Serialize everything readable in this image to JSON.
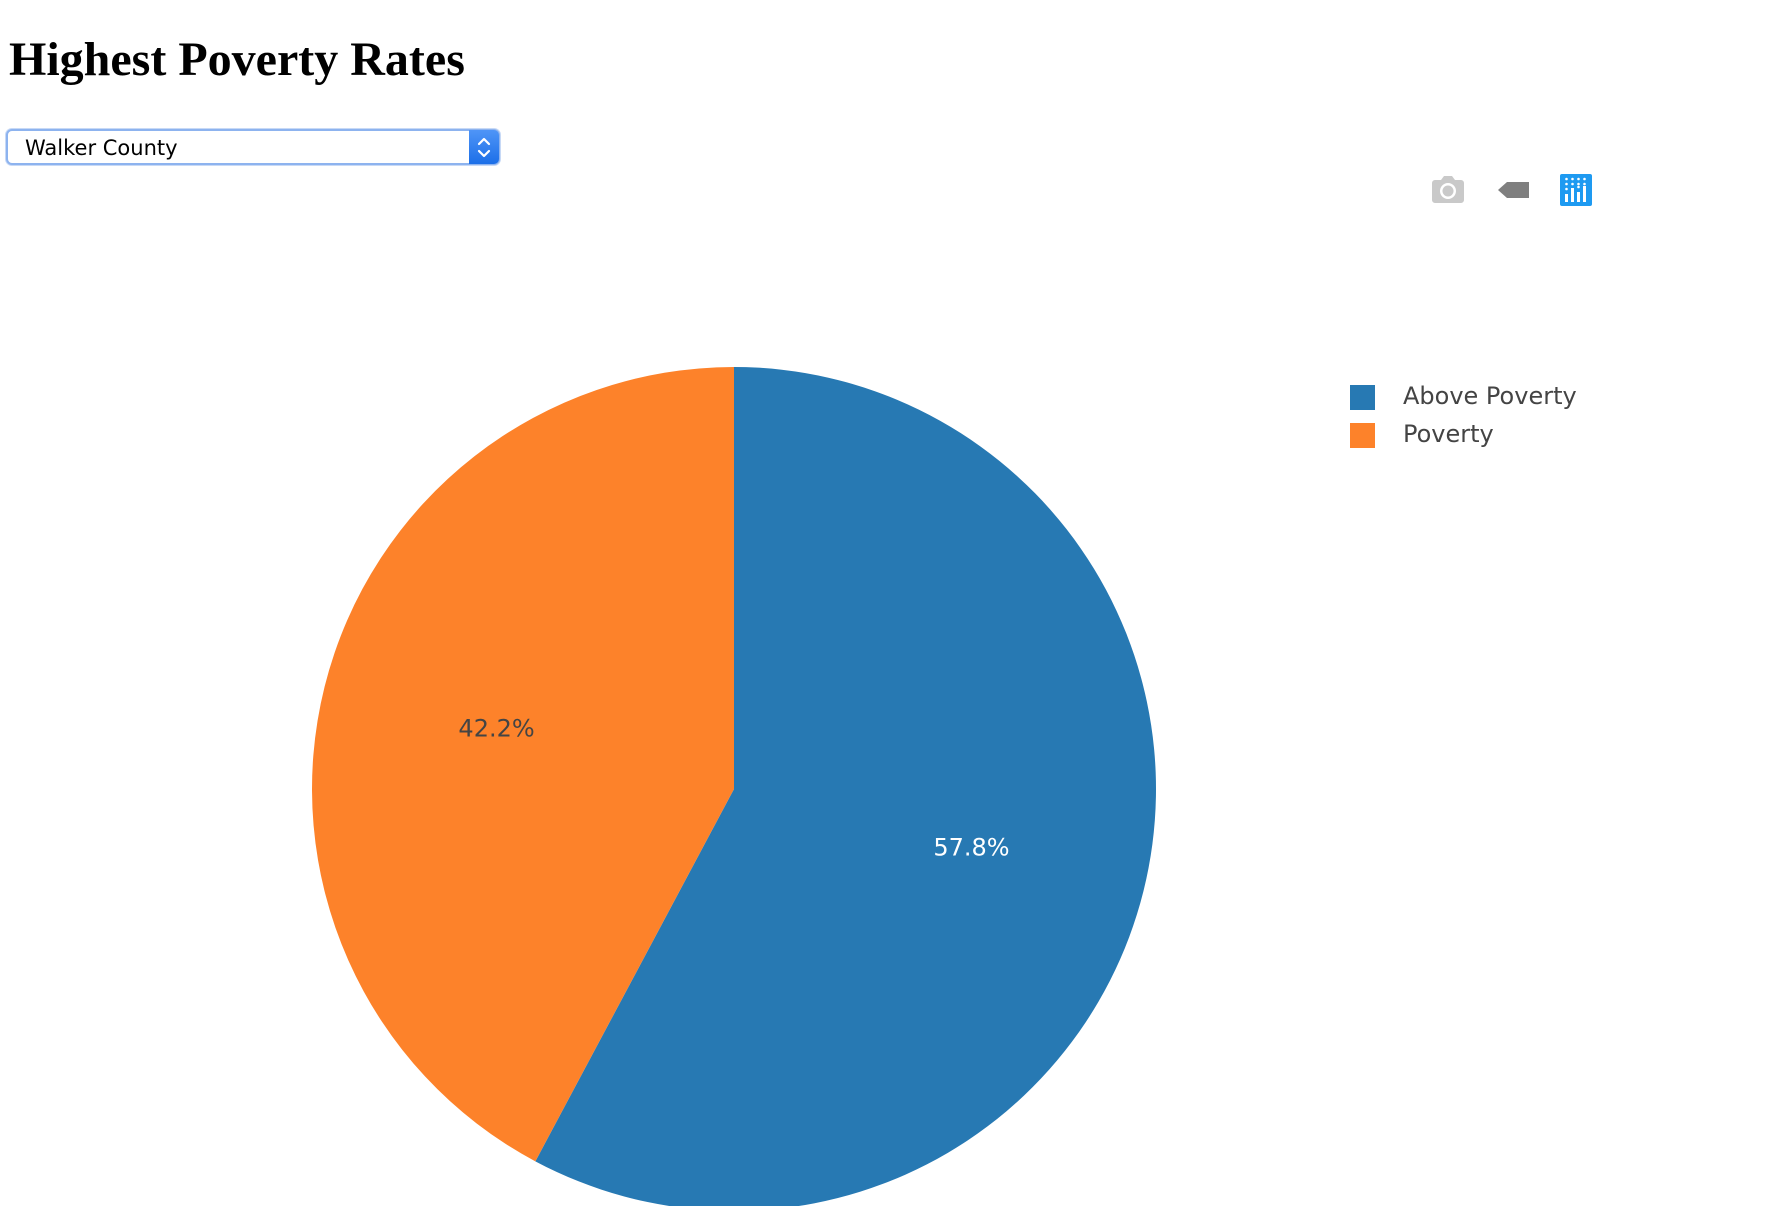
{
  "page": {
    "title": "Highest Poverty Rates"
  },
  "county_select": {
    "selected": "Walker County"
  },
  "modebar": {
    "buttons": [
      {
        "name": "camera-icon",
        "color": "#c9c9c9"
      },
      {
        "name": "tag-icon",
        "color": "#7f7f7f"
      },
      {
        "name": "plotly-logo-icon",
        "color": "#1e9af1"
      }
    ]
  },
  "chart_data": {
    "type": "pie",
    "title": "",
    "labels": [
      "Above Poverty",
      "Poverty"
    ],
    "values": [
      57.8,
      42.2
    ],
    "value_labels": [
      "57.8%",
      "42.2%"
    ],
    "colors": [
      "#2779b3",
      "#fd822a"
    ],
    "label_colors": [
      "#ffffff",
      "#444444"
    ],
    "direction": "clockwise",
    "start_angle_deg": 0,
    "legend_position": "right"
  }
}
